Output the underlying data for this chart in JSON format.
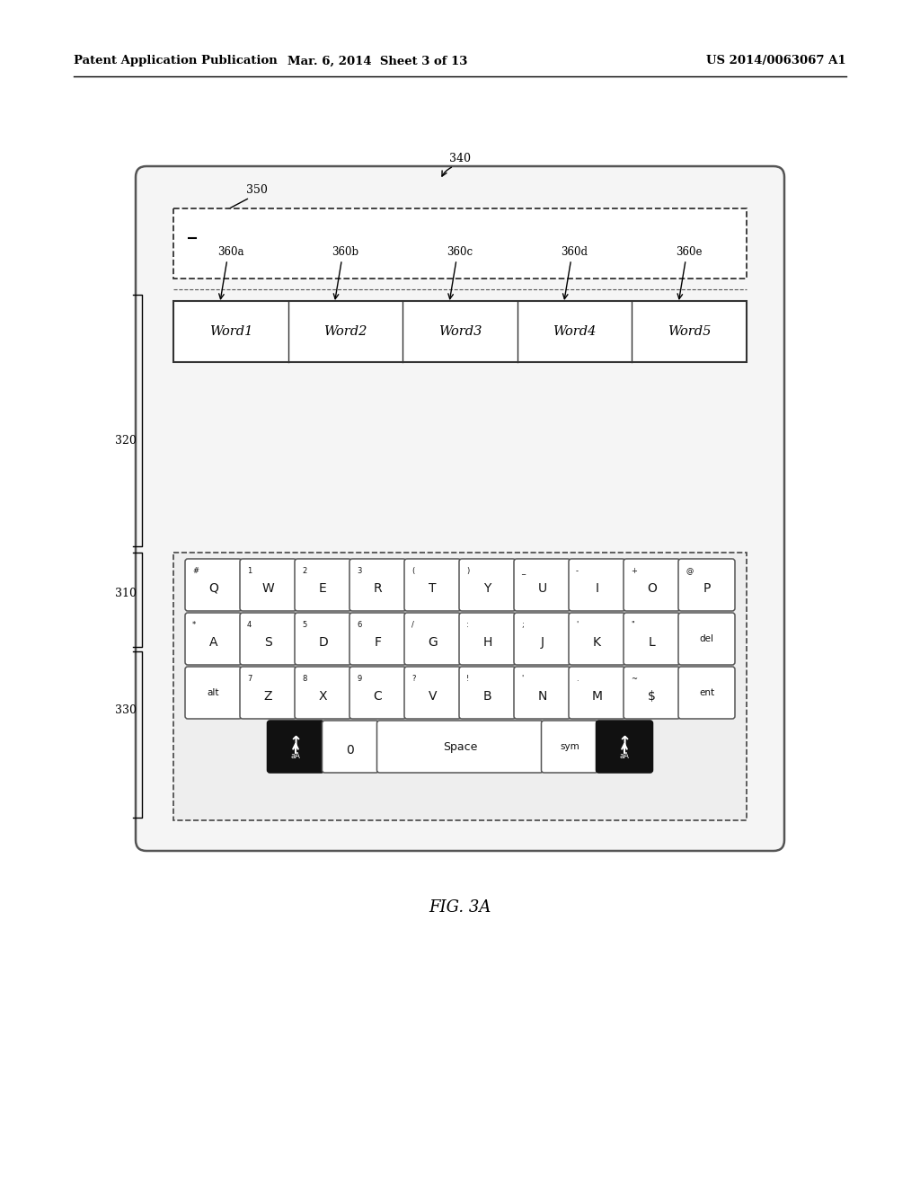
{
  "title_left": "Patent Application Publication",
  "title_mid": "Mar. 6, 2014  Sheet 3 of 13",
  "title_right": "US 2014/0063067 A1",
  "fig_label": "FIG. 3A",
  "label_340": "340",
  "label_350": "350",
  "label_320": "320",
  "label_310": "310",
  "label_330": "330",
  "word_labels": [
    "360a",
    "360b",
    "360c",
    "360d",
    "360e"
  ],
  "words": [
    "Word1",
    "Word2",
    "Word3",
    "Word4",
    "Word5"
  ],
  "row1_keys": [
    {
      "main": "Q",
      "sup": "#"
    },
    {
      "main": "W",
      "sup": "1"
    },
    {
      "main": "E",
      "sup": "2"
    },
    {
      "main": "R",
      "sup": "3"
    },
    {
      "main": "T",
      "sup": "("
    },
    {
      "main": "Y",
      "sup": ")"
    },
    {
      "main": "U",
      "sup": "_"
    },
    {
      "main": "I",
      "sup": "-"
    },
    {
      "main": "O",
      "sup": "+"
    },
    {
      "main": "P",
      "sup": "@"
    }
  ],
  "row2_keys": [
    {
      "main": "A",
      "sup": "*"
    },
    {
      "main": "S",
      "sup": "4"
    },
    {
      "main": "D",
      "sup": "5"
    },
    {
      "main": "F",
      "sup": "6"
    },
    {
      "main": "G",
      "sup": "/"
    },
    {
      "main": "H",
      "sup": ":"
    },
    {
      "main": "J",
      "sup": ";"
    },
    {
      "main": "K",
      "sup": "'"
    },
    {
      "main": "L",
      "sup": "\""
    },
    {
      "main": "del",
      "sup": ""
    }
  ],
  "row3_keys": [
    {
      "main": "alt",
      "sup": ""
    },
    {
      "main": "Z",
      "sup": "7"
    },
    {
      "main": "X",
      "sup": "8"
    },
    {
      "main": "C",
      "sup": "9"
    },
    {
      "main": "V",
      "sup": "?"
    },
    {
      "main": "B",
      "sup": "!"
    },
    {
      "main": "N",
      "sup": "'"
    },
    {
      "main": "M",
      "sup": "."
    },
    {
      "main": "$",
      "sup": "~"
    },
    {
      "main": "ent",
      "sup": ""
    }
  ],
  "row4_keys": [
    {
      "main": "aA",
      "sup": "",
      "black": true
    },
    {
      "main": "0",
      "sup": "",
      "black": false
    },
    {
      "main": "Space",
      "sup": "",
      "black": false
    },
    {
      "main": "sym",
      "sup": "",
      "black": false
    },
    {
      "main": "aA",
      "sup": "",
      "black": true
    }
  ],
  "bg_color": "#ffffff",
  "text_color": "#000000"
}
